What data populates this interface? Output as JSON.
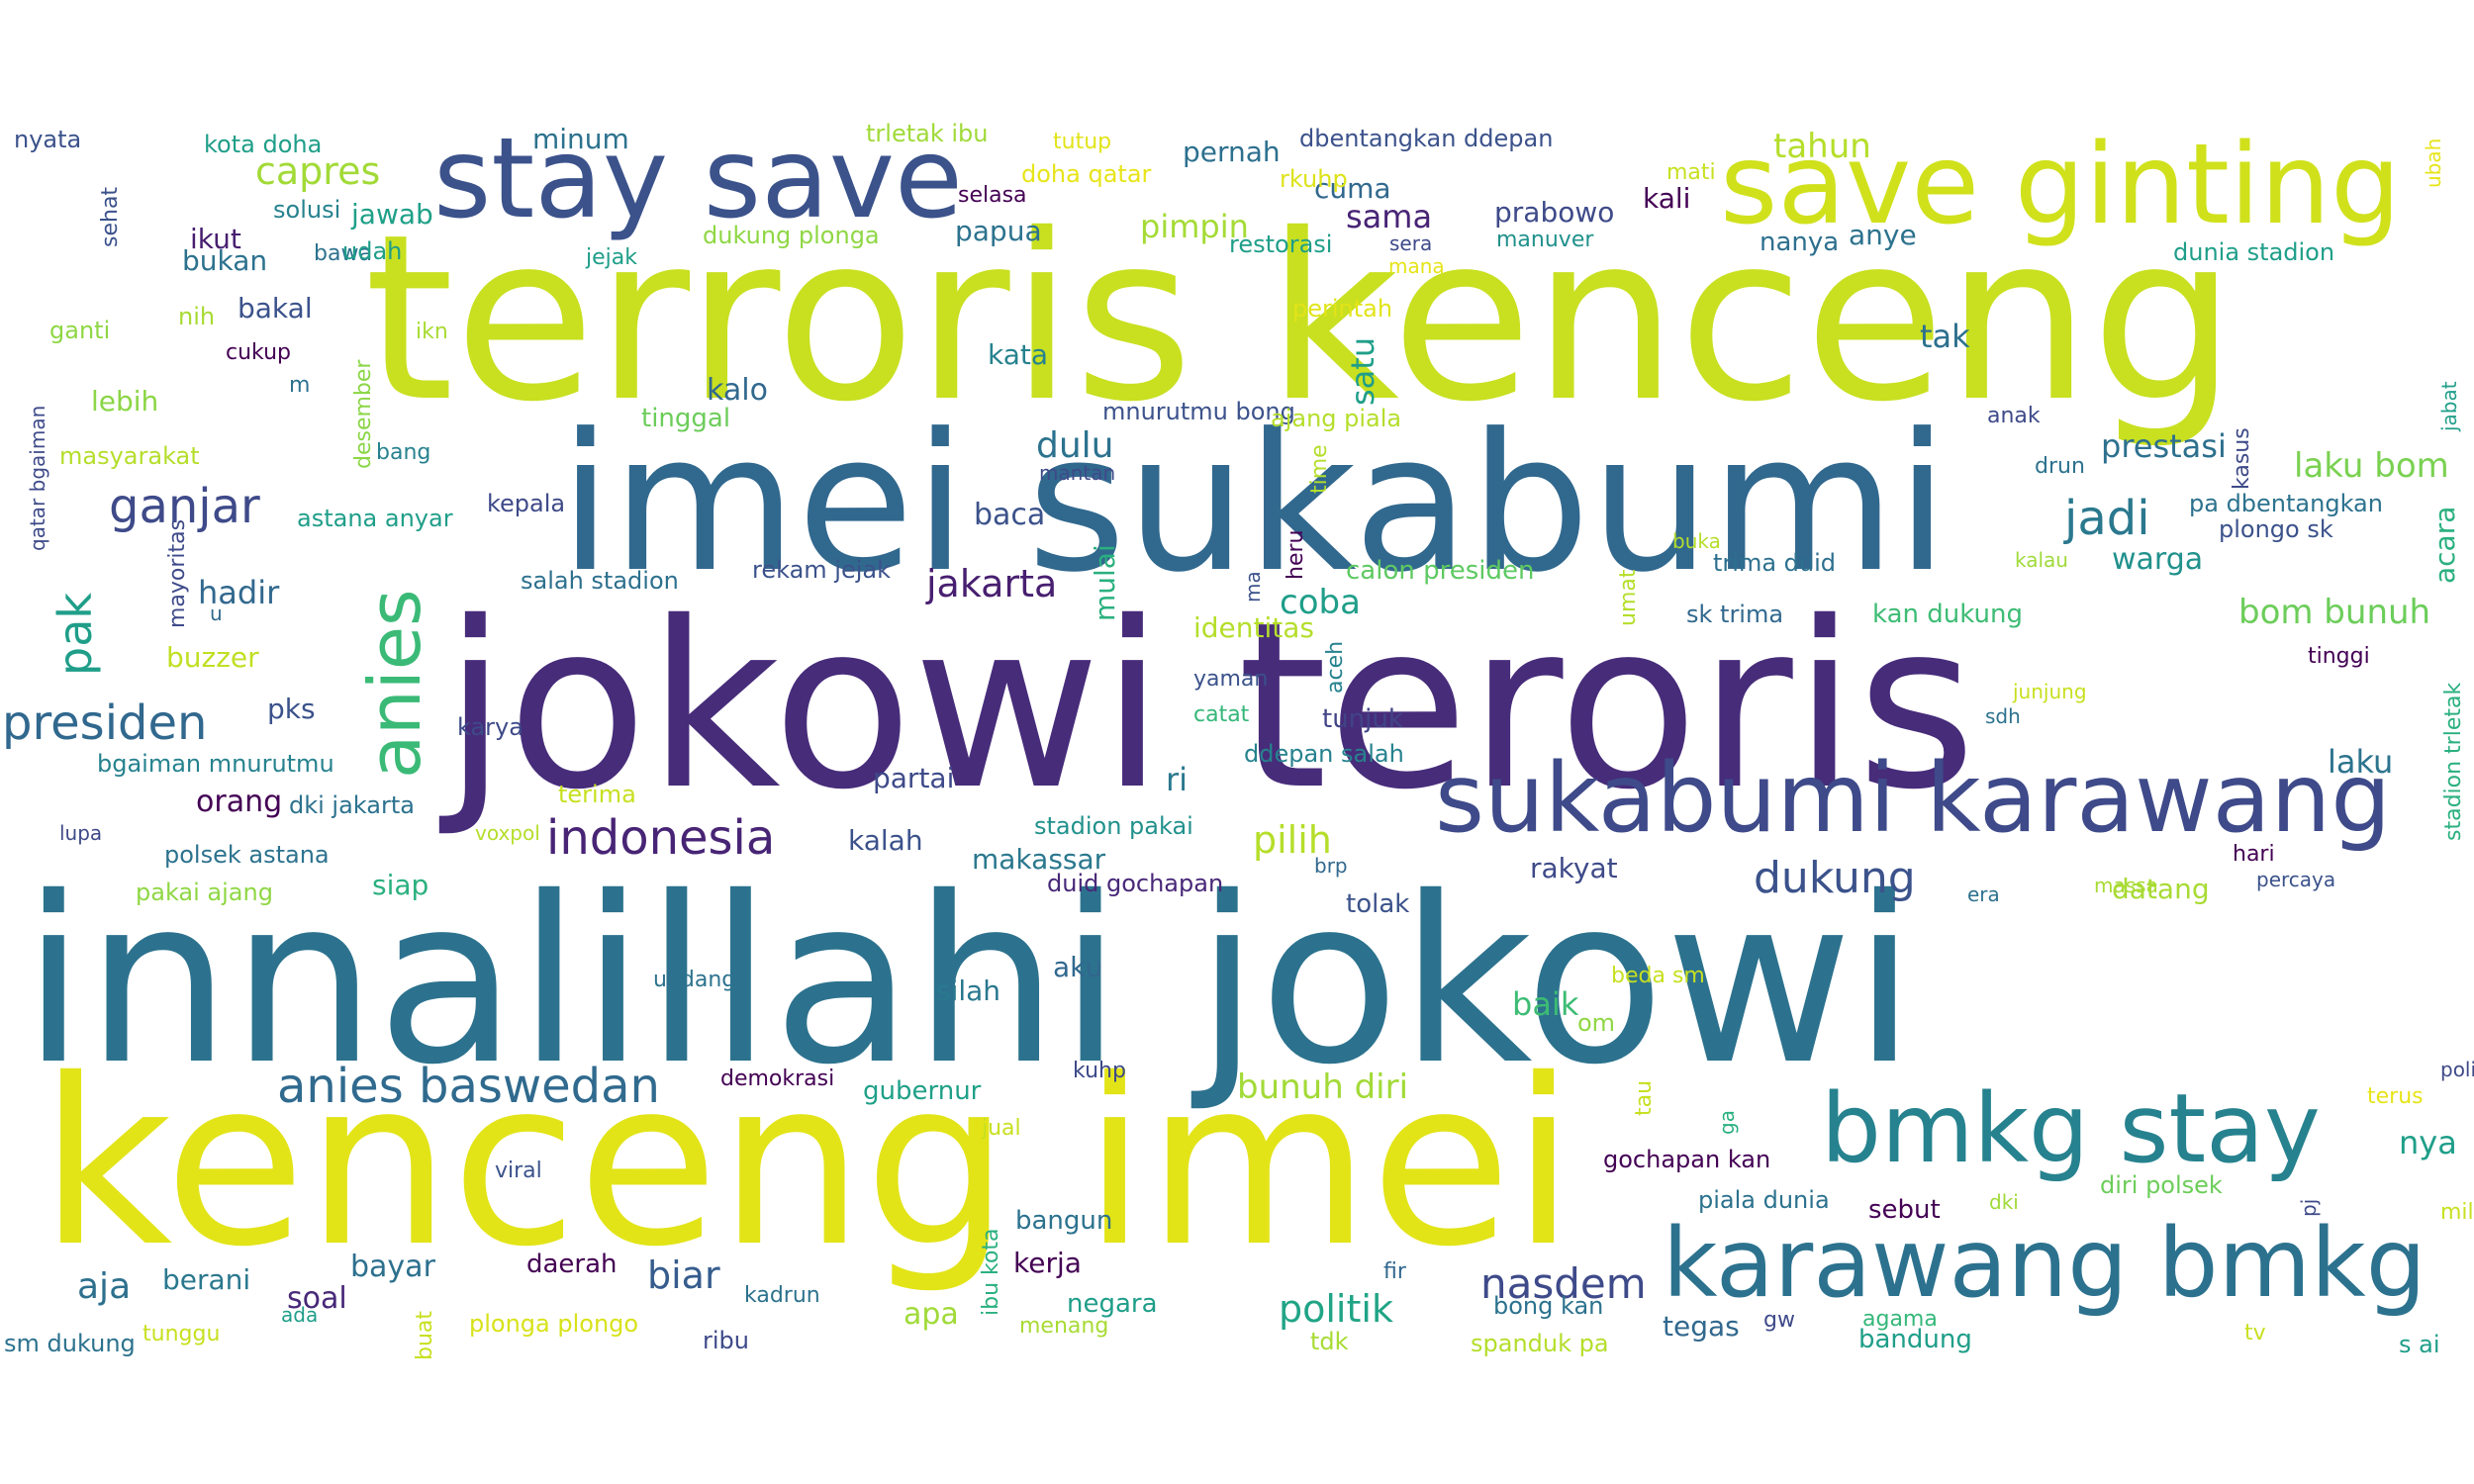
{
  "palette": [
    "#440154",
    "#482878",
    "#3e4989",
    "#31688e",
    "#26828e",
    "#1f9e89",
    "#35b779",
    "#6ece58",
    "#b5de2b",
    "#fde725"
  ],
  "words": [
    {
      "text": "terroris kenceng",
      "c": "#c8e020"
    },
    {
      "text": "jokowi teroris",
      "c": "#472c7a"
    },
    {
      "text": "innalillahi jokowi",
      "c": "#2c728e"
    },
    {
      "text": "kenceng imei",
      "c": "#e2e418"
    },
    {
      "text": "imei sukabumi",
      "c": "#31688e"
    },
    {
      "text": "stay save",
      "c": "#3b528b"
    },
    {
      "text": "save ginting",
      "c": "#d0e11c"
    },
    {
      "text": "sukabumi karawang",
      "c": "#3e4a89"
    },
    {
      "text": "karawang bmkg",
      "c": "#2c728e"
    },
    {
      "text": "bmkg stay",
      "c": "#26828e"
    },
    {
      "text": "anies",
      "c": "#3aba76"
    },
    {
      "text": "presiden",
      "c": "#31688e"
    },
    {
      "text": "ganjar",
      "c": "#3e4a89"
    },
    {
      "text": "anies baswedan",
      "c": "#306a8e"
    },
    {
      "text": "indonesia",
      "c": "#482475"
    },
    {
      "text": "jakarta",
      "c": "#481f70"
    },
    {
      "text": "jadi",
      "c": "#2a788e"
    },
    {
      "text": "nasdem",
      "c": "#3e4a89"
    },
    {
      "text": "pak",
      "c": "#1f9e89"
    },
    {
      "text": "dukung",
      "c": "#3b528b"
    },
    {
      "text": "capres",
      "c": "#a2da37"
    },
    {
      "text": "tahun",
      "c": "#b5de2b"
    },
    {
      "text": "bunuh diri",
      "c": "#a2da37"
    },
    {
      "text": "politik",
      "c": "#20a486"
    },
    {
      "text": "biar",
      "c": "#365c8d"
    },
    {
      "text": "bom bunuh",
      "c": "#6ccd5a"
    },
    {
      "text": "laku bom",
      "c": "#7ad151"
    },
    {
      "text": "pilih",
      "c": "#b5de2b"
    },
    {
      "text": "aja",
      "c": "#2d708e"
    },
    {
      "text": "dulu",
      "c": "#2c728e"
    },
    {
      "text": "pimpin",
      "c": "#a5db36"
    },
    {
      "text": "coba",
      "c": "#1f9e89"
    },
    {
      "text": "hadir",
      "c": "#31688e"
    },
    {
      "text": "prestasi",
      "c": "#2d708e"
    },
    {
      "text": "laku",
      "c": "#2c738e"
    },
    {
      "text": "ri",
      "c": "#2a788e"
    },
    {
      "text": "baik",
      "c": "#3dbc74"
    },
    {
      "text": "sama",
      "c": "#482475"
    },
    {
      "text": "prabowo",
      "c": "#3e4a89"
    },
    {
      "text": "kali",
      "c": "#440154"
    },
    {
      "text": "cuma",
      "c": "#31688e"
    },
    {
      "text": "pernah",
      "c": "#2d708e"
    },
    {
      "text": "papua",
      "c": "#2c728e"
    },
    {
      "text": "tak",
      "c": "#2d708e"
    },
    {
      "text": "satu",
      "c": "#1f9e89"
    },
    {
      "text": "kalo",
      "c": "#31688e"
    },
    {
      "text": "baca",
      "c": "#3b528b"
    },
    {
      "text": "partai",
      "c": "#3e4a89"
    },
    {
      "text": "kata",
      "c": "#26828e"
    },
    {
      "text": "warga",
      "c": "#21918c"
    },
    {
      "text": "acara",
      "c": "#2ab07f"
    },
    {
      "text": "rakyat",
      "c": "#3e4a89"
    },
    {
      "text": "mulai",
      "c": "#2ab07f"
    },
    {
      "text": "orang",
      "c": "#440154"
    },
    {
      "text": "bayar",
      "c": "#2d708e"
    },
    {
      "text": "soal",
      "c": "#482878"
    },
    {
      "text": "apa",
      "c": "#a0da39"
    },
    {
      "text": "makassar",
      "c": "#2a788e"
    },
    {
      "text": "kalah",
      "c": "#3b528b"
    },
    {
      "text": "pks",
      "c": "#3b528b"
    },
    {
      "text": "nya",
      "c": "#1f9e89"
    },
    {
      "text": "datang",
      "c": "#a8db34"
    },
    {
      "text": "identitas",
      "c": "#b5de2b"
    },
    {
      "text": "jawab",
      "c": "#1fa088"
    },
    {
      "text": "ikut",
      "c": "#481f70"
    },
    {
      "text": "bukan",
      "c": "#2c728e"
    },
    {
      "text": "lebih",
      "c": "#8bd646"
    },
    {
      "text": "minum",
      "c": "#2c728e"
    },
    {
      "text": "siap",
      "c": "#2ab07f"
    },
    {
      "text": "bakal",
      "c": "#3b528b"
    },
    {
      "text": "buzzer",
      "c": "#c2df23"
    },
    {
      "text": "berani",
      "c": "#2a788e"
    },
    {
      "text": "tinggal",
      "c": "#6ccd5a"
    },
    {
      "text": "kerja",
      "c": "#440154"
    },
    {
      "text": "negara",
      "c": "#1f9e89"
    },
    {
      "text": "daerah",
      "c": "#440154"
    },
    {
      "text": "tegas",
      "c": "#31688e"
    },
    {
      "text": "aku",
      "c": "#31688e"
    },
    {
      "text": "silah",
      "c": "#2a788e"
    },
    {
      "text": "anye",
      "c": "#2c728e"
    },
    {
      "text": "nanya",
      "c": "#2d708e"
    },
    {
      "text": "sebut",
      "c": "#440154"
    },
    {
      "text": "gubernur",
      "c": "#1fa088"
    },
    {
      "text": "bandung",
      "c": "#1f9e89"
    },
    {
      "text": "bangun",
      "c": "#2c728e"
    },
    {
      "text": "tunjuk",
      "c": "#414487"
    },
    {
      "text": "tolak",
      "c": "#3b528b"
    },
    {
      "text": "trima duid",
      "c": "#2d708e"
    },
    {
      "text": "sk trima",
      "c": "#31688e"
    },
    {
      "text": "kan dukung",
      "c": "#3dbc74"
    },
    {
      "text": "rekam jejak",
      "c": "#3b528b"
    },
    {
      "text": "calon presiden",
      "c": "#5ec962"
    },
    {
      "text": "salah stadion",
      "c": "#2d708e"
    },
    {
      "text": "astana anyar",
      "c": "#1f9e89"
    },
    {
      "text": "kepala",
      "c": "#3e4a89"
    },
    {
      "text": "mnurutmu bong",
      "c": "#3b528b"
    },
    {
      "text": "ajang piala",
      "c": "#b5de2b"
    },
    {
      "text": "duid gochapan",
      "c": "#482878"
    },
    {
      "text": "stadion pakai",
      "c": "#21918c"
    },
    {
      "text": "ddepan salah",
      "c": "#26828e"
    },
    {
      "text": "dbentangkan ddepan",
      "c": "#3b528b"
    },
    {
      "text": "trletak ibu",
      "c": "#a0da39"
    },
    {
      "text": "kota doha",
      "c": "#1f9e89"
    },
    {
      "text": "dukung plonga",
      "c": "#8fd744"
    },
    {
      "text": "dunia stadion",
      "c": "#1f9e89"
    },
    {
      "text": "plongo sk",
      "c": "#3b528b"
    },
    {
      "text": "pa dbentangkan",
      "c": "#2c728e"
    },
    {
      "text": "polsek astana",
      "c": "#2c728e"
    },
    {
      "text": "bgaiman mnurutmu",
      "c": "#26828e"
    },
    {
      "text": "pakai ajang",
      "c": "#8fd744"
    },
    {
      "text": "dki jakarta",
      "c": "#2c728e"
    },
    {
      "text": "masyarakat",
      "c": "#b5de2b"
    },
    {
      "text": "plonga plongo",
      "c": "#d8e219"
    },
    {
      "text": "gochapan kan",
      "c": "#440154"
    },
    {
      "text": "piala dunia",
      "c": "#2c728e"
    },
    {
      "text": "diri polsek",
      "c": "#6ccd5a"
    },
    {
      "text": "spanduk pa",
      "c": "#b5de2b"
    },
    {
      "text": "sm dukung",
      "c": "#2c728e"
    },
    {
      "text": "bong kan",
      "c": "#2c728e"
    },
    {
      "text": "doha qatar",
      "c": "#e7e419"
    },
    {
      "text": "restorasi",
      "c": "#1f9e89"
    },
    {
      "text": "rkuhp",
      "c": "#dde318"
    },
    {
      "text": "perintah",
      "c": "#e2e418"
    },
    {
      "text": "nyata",
      "c": "#3b528b"
    },
    {
      "text": "sehat",
      "c": "#3b528b"
    },
    {
      "text": "solusi",
      "c": "#26828e"
    },
    {
      "text": "bawa",
      "c": "#2c728e"
    },
    {
      "text": "udah",
      "c": "#1f9e89"
    },
    {
      "text": "jejak",
      "c": "#1f9e89"
    },
    {
      "text": "tutup",
      "c": "#e2e418"
    },
    {
      "text": "selasa",
      "c": "#440154"
    },
    {
      "text": "sera",
      "c": "#3e4a89"
    },
    {
      "text": "mana",
      "c": "#e5e419"
    },
    {
      "text": "manuver",
      "c": "#21918c"
    },
    {
      "text": "mati",
      "c": "#c8e020"
    },
    {
      "text": "ubah",
      "c": "#e7e419"
    },
    {
      "text": "ganti",
      "c": "#8fd744"
    },
    {
      "text": "nih",
      "c": "#a8db34"
    },
    {
      "text": "cukup",
      "c": "#440154"
    },
    {
      "text": "ikn",
      "c": "#a8db34"
    },
    {
      "text": "desember",
      "c": "#8bd646"
    },
    {
      "text": "m",
      "c": "#2c728e"
    },
    {
      "text": "bang",
      "c": "#26828e"
    },
    {
      "text": "qatar bgaiman",
      "c": "#3e4a89"
    },
    {
      "text": "anak",
      "c": "#3e4a89"
    },
    {
      "text": "time",
      "c": "#b5de2b"
    },
    {
      "text": "mantan",
      "c": "#3e4a89"
    },
    {
      "text": "drun",
      "c": "#2c728e"
    },
    {
      "text": "kasus",
      "c": "#3e4a89"
    },
    {
      "text": "kalau",
      "c": "#a0da39"
    },
    {
      "text": "jabat",
      "c": "#1f9e89"
    },
    {
      "text": "heru",
      "c": "#440154"
    },
    {
      "text": "buka",
      "c": "#b5de2b"
    },
    {
      "text": "umat",
      "c": "#b5de2b"
    },
    {
      "text": "ma",
      "c": "#3b528b"
    },
    {
      "text": "mayoritas",
      "c": "#3e4a89"
    },
    {
      "text": "u",
      "c": "#31688e"
    },
    {
      "text": "karya",
      "c": "#3e4a89"
    },
    {
      "text": "yaman",
      "c": "#3b528b"
    },
    {
      "text": "catat",
      "c": "#35b779"
    },
    {
      "text": "aceh",
      "c": "#26828e"
    },
    {
      "text": "tinggi",
      "c": "#440154"
    },
    {
      "text": "stadion trletak",
      "c": "#2ab07f"
    },
    {
      "text": "junjung",
      "c": "#c8e020"
    },
    {
      "text": "sdh",
      "c": "#2c728e"
    },
    {
      "text": "terima",
      "c": "#c8e020"
    },
    {
      "text": "voxpol",
      "c": "#b5de2b"
    },
    {
      "text": "lupa",
      "c": "#3e4a89"
    },
    {
      "text": "brp",
      "c": "#31688e"
    },
    {
      "text": "massa",
      "c": "#a8db34"
    },
    {
      "text": "hari",
      "c": "#440154"
    },
    {
      "text": "era",
      "c": "#2c728e"
    },
    {
      "text": "percaya",
      "c": "#3b528b"
    },
    {
      "text": "undang",
      "c": "#2c728e"
    },
    {
      "text": "beda sm",
      "c": "#c8e020"
    },
    {
      "text": "om",
      "c": "#8fd744"
    },
    {
      "text": "kuhp",
      "c": "#3e4a89"
    },
    {
      "text": "demokrasi",
      "c": "#440154"
    },
    {
      "text": "jual",
      "c": "#c8e020"
    },
    {
      "text": "tau",
      "c": "#c8e020"
    },
    {
      "text": "ga",
      "c": "#2ab07f"
    },
    {
      "text": "polisi",
      "c": "#3e4a89"
    },
    {
      "text": "terus",
      "c": "#e7e419"
    },
    {
      "text": "viral",
      "c": "#3b528b"
    },
    {
      "text": "ibu kota",
      "c": "#2ab07f"
    },
    {
      "text": "pj",
      "c": "#3e4a89"
    },
    {
      "text": "dki",
      "c": "#a0da39"
    },
    {
      "text": "milik",
      "c": "#c8e020"
    },
    {
      "text": "fir",
      "c": "#31688e"
    },
    {
      "text": "kadrun",
      "c": "#2c728e"
    },
    {
      "text": "menang",
      "c": "#a8db34"
    },
    {
      "text": "gw",
      "c": "#3e4a89"
    },
    {
      "text": "agama",
      "c": "#35b779"
    },
    {
      "text": "tv",
      "c": "#c8e020"
    },
    {
      "text": "s ai",
      "c": "#1f9e89"
    },
    {
      "text": "ada",
      "c": "#1f9e89"
    },
    {
      "text": "tunggu",
      "c": "#c8e020"
    },
    {
      "text": "buat",
      "c": "#c8e020"
    },
    {
      "text": "ribu",
      "c": "#3e4a89"
    },
    {
      "text": "tdk",
      "c": "#a8db34"
    }
  ]
}
